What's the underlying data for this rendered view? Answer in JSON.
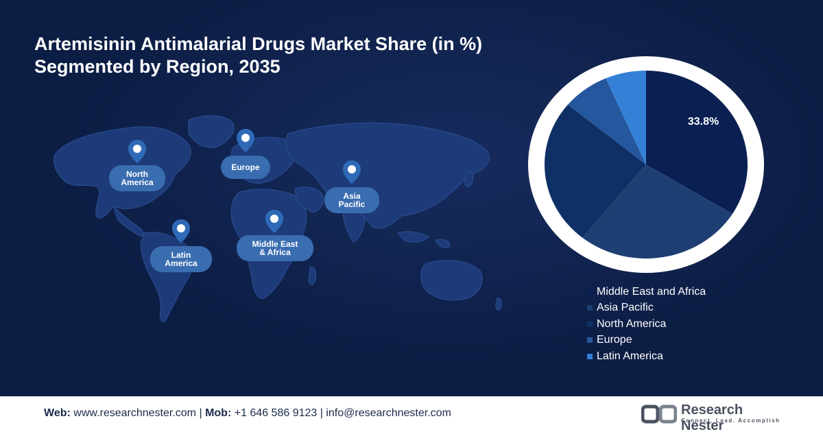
{
  "title": {
    "line1": "Artemisinin Antimalarial Drugs Market Share (in %)",
    "line2": "Segmented by Region, 2035"
  },
  "map_labels": {
    "north_america": [
      "North",
      "America"
    ],
    "europe": [
      "Europe"
    ],
    "asia_pacific": [
      "Asia",
      "Pacific"
    ],
    "latin_america": [
      "Latin",
      "America"
    ],
    "mea": [
      "Middle East",
      "& Africa"
    ]
  },
  "chart_data": {
    "type": "pie",
    "title": "Artemisinin Antimalarial Drugs Market Share (in %) Segmented by Region, 2035",
    "start_angle": "12 o'clock",
    "direction": "clockwise",
    "legend_position": "bottom",
    "series": [
      {
        "name": "Middle East and Africa",
        "value": 33.8,
        "color": "#0a1f52",
        "label": "33.8%"
      },
      {
        "name": "Asia Pacific",
        "value": 27.0,
        "color": "#1e3f73",
        "label": ""
      },
      {
        "name": "North America",
        "value": 25.2,
        "color": "#0f3066",
        "label": ""
      },
      {
        "name": "Europe",
        "value": 7.5,
        "color": "#25579e",
        "label": ""
      },
      {
        "name": "Latin America",
        "value": 6.5,
        "color": "#3380d6",
        "label": ""
      }
    ]
  },
  "footer": {
    "web_label": "Web:",
    "web_value": "www.researchnester.com",
    "mob_label": "Mob:",
    "mob_value": "+1 646 586 9123",
    "email_value": "info@researchnester.com",
    "separator": "|"
  },
  "logo": {
    "name": "Research Nester",
    "tagline": "Connect. Lead. Accomplish"
  }
}
